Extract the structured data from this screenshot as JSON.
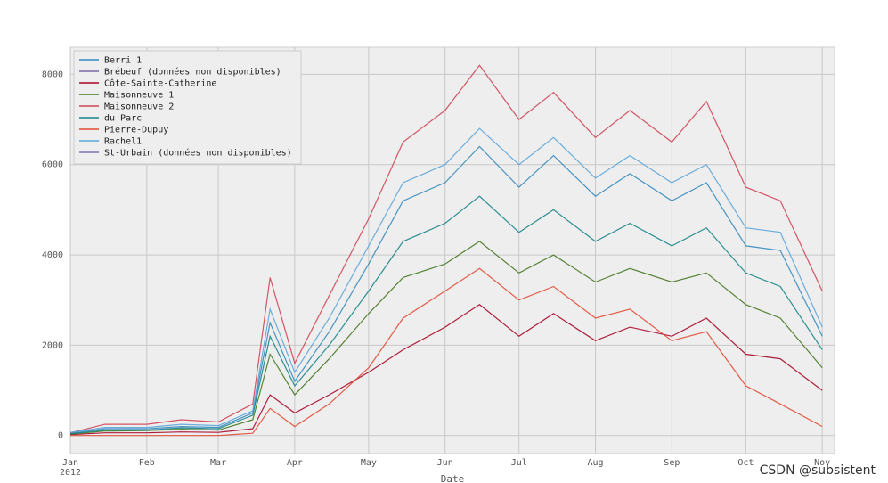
{
  "chart_data": {
    "type": "line",
    "xlabel": "Date",
    "ylabel": "",
    "ylim": [
      -400,
      8600
    ],
    "yticks": [
      0,
      2000,
      4000,
      6000,
      8000
    ],
    "xlim_days": [
      0,
      310
    ],
    "xticks": [
      {
        "label": "Jan",
        "sublabel": "2012",
        "date": "2012-01-01"
      },
      {
        "label": "Feb",
        "date": "2012-02-01"
      },
      {
        "label": "Mar",
        "date": "2012-03-01"
      },
      {
        "label": "Apr",
        "date": "2012-04-01"
      },
      {
        "label": "May",
        "date": "2012-05-01"
      },
      {
        "label": "Jun",
        "date": "2012-06-01"
      },
      {
        "label": "Jul",
        "date": "2012-07-01"
      },
      {
        "label": "Aug",
        "date": "2012-08-01"
      },
      {
        "label": "Sep",
        "date": "2012-09-01"
      },
      {
        "label": "Oct",
        "date": "2012-10-01"
      },
      {
        "label": "Nov",
        "date": "2012-11-01"
      }
    ],
    "grid": true,
    "legend_position": "top-left",
    "series": [
      {
        "name": "Berri 1",
        "color": "#348ABD",
        "data": [
          [
            "2012-01-01",
            50
          ],
          [
            "2012-01-15",
            150
          ],
          [
            "2012-02-01",
            150
          ],
          [
            "2012-02-15",
            200
          ],
          [
            "2012-03-01",
            180
          ],
          [
            "2012-03-15",
            500
          ],
          [
            "2012-03-22",
            2500
          ],
          [
            "2012-04-01",
            1200
          ],
          [
            "2012-04-15",
            2300
          ],
          [
            "2012-05-01",
            3800
          ],
          [
            "2012-05-15",
            5200
          ],
          [
            "2012-06-01",
            5600
          ],
          [
            "2012-06-15",
            6400
          ],
          [
            "2012-07-01",
            5500
          ],
          [
            "2012-07-15",
            6200
          ],
          [
            "2012-08-01",
            5300
          ],
          [
            "2012-08-15",
            5800
          ],
          [
            "2012-09-01",
            5200
          ],
          [
            "2012-09-15",
            5600
          ],
          [
            "2012-10-01",
            4200
          ],
          [
            "2012-10-15",
            4100
          ],
          [
            "2012-11-01",
            2200
          ]
        ]
      },
      {
        "name": "Brébeuf (données non disponibles)",
        "color": "#7A68A6",
        "data": []
      },
      {
        "name": "Côte-Sainte-Catherine",
        "color": "#A60628",
        "data": [
          [
            "2012-01-01",
            20
          ],
          [
            "2012-01-15",
            60
          ],
          [
            "2012-02-01",
            60
          ],
          [
            "2012-02-15",
            80
          ],
          [
            "2012-03-01",
            70
          ],
          [
            "2012-03-15",
            150
          ],
          [
            "2012-03-22",
            900
          ],
          [
            "2012-04-01",
            500
          ],
          [
            "2012-04-15",
            900
          ],
          [
            "2012-05-01",
            1400
          ],
          [
            "2012-05-15",
            1900
          ],
          [
            "2012-06-01",
            2400
          ],
          [
            "2012-06-15",
            2900
          ],
          [
            "2012-07-01",
            2200
          ],
          [
            "2012-07-15",
            2700
          ],
          [
            "2012-08-01",
            2100
          ],
          [
            "2012-08-15",
            2400
          ],
          [
            "2012-09-01",
            2200
          ],
          [
            "2012-09-15",
            2600
          ],
          [
            "2012-10-01",
            1800
          ],
          [
            "2012-10-15",
            1700
          ],
          [
            "2012-11-01",
            1000
          ]
        ]
      },
      {
        "name": "Maisonneuve 1",
        "color": "#467821",
        "data": [
          [
            "2012-01-01",
            30
          ],
          [
            "2012-01-15",
            100
          ],
          [
            "2012-02-01",
            110
          ],
          [
            "2012-02-15",
            140
          ],
          [
            "2012-03-01",
            120
          ],
          [
            "2012-03-15",
            350
          ],
          [
            "2012-03-22",
            1800
          ],
          [
            "2012-04-01",
            900
          ],
          [
            "2012-04-15",
            1700
          ],
          [
            "2012-05-01",
            2700
          ],
          [
            "2012-05-15",
            3500
          ],
          [
            "2012-06-01",
            3800
          ],
          [
            "2012-06-15",
            4300
          ],
          [
            "2012-07-01",
            3600
          ],
          [
            "2012-07-15",
            4000
          ],
          [
            "2012-08-01",
            3400
          ],
          [
            "2012-08-15",
            3700
          ],
          [
            "2012-09-01",
            3400
          ],
          [
            "2012-09-15",
            3600
          ],
          [
            "2012-10-01",
            2900
          ],
          [
            "2012-10-15",
            2600
          ],
          [
            "2012-11-01",
            1500
          ]
        ]
      },
      {
        "name": "Maisonneuve 2",
        "color": "#CF4457",
        "data": [
          [
            "2012-01-01",
            60
          ],
          [
            "2012-01-15",
            250
          ],
          [
            "2012-02-01",
            250
          ],
          [
            "2012-02-15",
            350
          ],
          [
            "2012-03-01",
            300
          ],
          [
            "2012-03-15",
            700
          ],
          [
            "2012-03-22",
            3500
          ],
          [
            "2012-04-01",
            1600
          ],
          [
            "2012-04-15",
            3100
          ],
          [
            "2012-05-01",
            4800
          ],
          [
            "2012-05-15",
            6500
          ],
          [
            "2012-06-01",
            7200
          ],
          [
            "2012-06-15",
            8200
          ],
          [
            "2012-07-01",
            7000
          ],
          [
            "2012-07-15",
            7600
          ],
          [
            "2012-08-01",
            6600
          ],
          [
            "2012-08-15",
            7200
          ],
          [
            "2012-09-01",
            6500
          ],
          [
            "2012-09-15",
            7400
          ],
          [
            "2012-10-01",
            5500
          ],
          [
            "2012-10-15",
            5200
          ],
          [
            "2012-11-01",
            3200
          ]
        ]
      },
      {
        "name": "du Parc",
        "color": "#188487",
        "data": [
          [
            "2012-01-01",
            40
          ],
          [
            "2012-01-15",
            120
          ],
          [
            "2012-02-01",
            120
          ],
          [
            "2012-02-15",
            170
          ],
          [
            "2012-03-01",
            150
          ],
          [
            "2012-03-15",
            450
          ],
          [
            "2012-03-22",
            2200
          ],
          [
            "2012-04-01",
            1100
          ],
          [
            "2012-04-15",
            2000
          ],
          [
            "2012-05-01",
            3200
          ],
          [
            "2012-05-15",
            4300
          ],
          [
            "2012-06-01",
            4700
          ],
          [
            "2012-06-15",
            5300
          ],
          [
            "2012-07-01",
            4500
          ],
          [
            "2012-07-15",
            5000
          ],
          [
            "2012-08-01",
            4300
          ],
          [
            "2012-08-15",
            4700
          ],
          [
            "2012-09-01",
            4200
          ],
          [
            "2012-09-15",
            4600
          ],
          [
            "2012-10-01",
            3600
          ],
          [
            "2012-10-15",
            3300
          ],
          [
            "2012-11-01",
            1900
          ]
        ]
      },
      {
        "name": "Pierre-Dupuy",
        "color": "#E24A33",
        "data": [
          [
            "2012-01-01",
            0
          ],
          [
            "2012-01-15",
            0
          ],
          [
            "2012-02-01",
            0
          ],
          [
            "2012-02-15",
            0
          ],
          [
            "2012-03-01",
            0
          ],
          [
            "2012-03-15",
            50
          ],
          [
            "2012-03-22",
            600
          ],
          [
            "2012-04-01",
            200
          ],
          [
            "2012-04-15",
            700
          ],
          [
            "2012-05-01",
            1500
          ],
          [
            "2012-05-15",
            2600
          ],
          [
            "2012-06-01",
            3200
          ],
          [
            "2012-06-15",
            3700
          ],
          [
            "2012-07-01",
            3000
          ],
          [
            "2012-07-15",
            3300
          ],
          [
            "2012-08-01",
            2600
          ],
          [
            "2012-08-15",
            2800
          ],
          [
            "2012-09-01",
            2100
          ],
          [
            "2012-09-15",
            2300
          ],
          [
            "2012-10-01",
            1100
          ],
          [
            "2012-10-15",
            700
          ],
          [
            "2012-11-01",
            200
          ]
        ]
      },
      {
        "name": "Rachel1",
        "color": "#5DA5DA",
        "data": [
          [
            "2012-01-01",
            70
          ],
          [
            "2012-01-15",
            180
          ],
          [
            "2012-02-01",
            180
          ],
          [
            "2012-02-15",
            250
          ],
          [
            "2012-03-01",
            220
          ],
          [
            "2012-03-15",
            550
          ],
          [
            "2012-03-22",
            2800
          ],
          [
            "2012-04-01",
            1400
          ],
          [
            "2012-04-15",
            2600
          ],
          [
            "2012-05-01",
            4200
          ],
          [
            "2012-05-15",
            5600
          ],
          [
            "2012-06-01",
            6000
          ],
          [
            "2012-06-15",
            6800
          ],
          [
            "2012-07-01",
            6000
          ],
          [
            "2012-07-15",
            6600
          ],
          [
            "2012-08-01",
            5700
          ],
          [
            "2012-08-15",
            6200
          ],
          [
            "2012-09-01",
            5600
          ],
          [
            "2012-09-15",
            6000
          ],
          [
            "2012-10-01",
            4600
          ],
          [
            "2012-10-15",
            4500
          ],
          [
            "2012-11-01",
            2400
          ]
        ]
      },
      {
        "name": "St-Urbain (données non disponibles)",
        "color": "#8172B2",
        "data": []
      }
    ]
  },
  "watermark": "CSDN @subsistent"
}
